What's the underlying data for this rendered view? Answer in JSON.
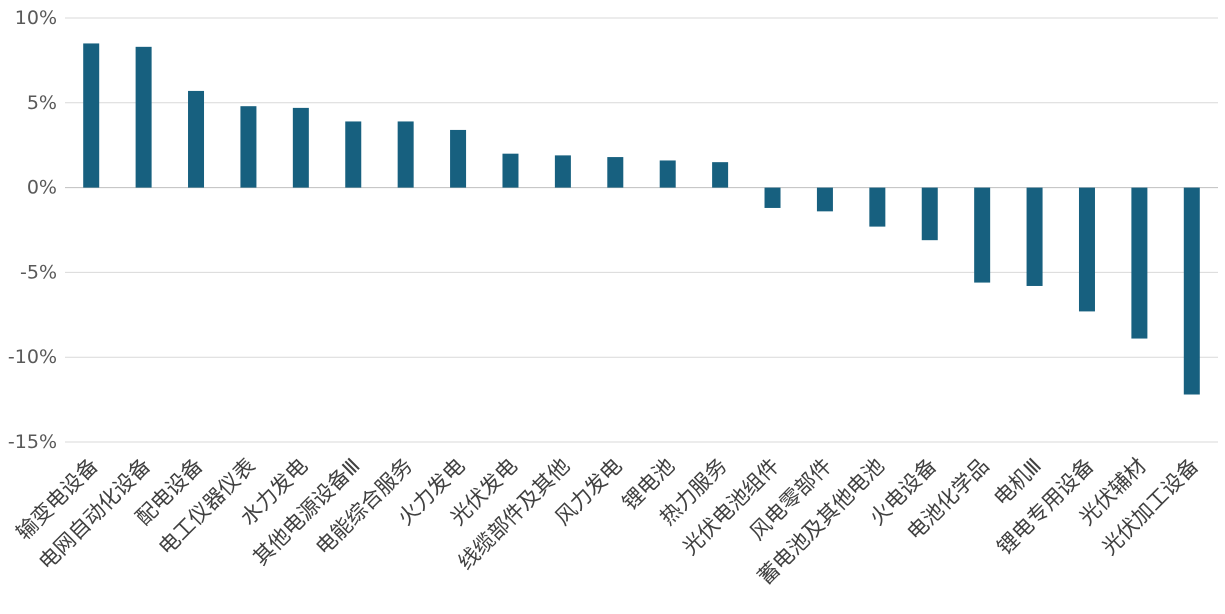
{
  "chart_data": {
    "type": "bar",
    "title": "",
    "xlabel": "",
    "ylabel": "",
    "ylim": [
      -15,
      10
    ],
    "yticks": [
      10,
      5,
      0,
      -5,
      -10,
      -15
    ],
    "ytick_labels": [
      "10%",
      "5%",
      "0%",
      "-5%",
      "-10%",
      "-15%"
    ],
    "grid": true,
    "legend": "none",
    "bar_color": "#17607f",
    "categories": [
      "输变电设备",
      "电网自动化设备",
      "配电设备",
      "电工仪器仪表",
      "水力发电",
      "其他电源设备Ⅲ",
      "电能综合服务",
      "火力发电",
      "光伏发电",
      "线缆部件及其他",
      "风力发电",
      "锂电池",
      "热力服务",
      "光伏电池组件",
      "风电零部件",
      "蓄电池及其他电池",
      "火电设备",
      "电池化学品",
      "电机Ⅲ",
      "锂电专用设备",
      "光伏辅材",
      "光伏加工设备"
    ],
    "values": [
      8.5,
      8.3,
      5.7,
      4.8,
      4.7,
      3.9,
      3.9,
      3.4,
      2.0,
      1.9,
      1.8,
      1.6,
      1.5,
      -1.2,
      -1.4,
      -2.3,
      -3.1,
      -5.6,
      -5.8,
      -7.3,
      -8.9,
      -12.2
    ]
  }
}
